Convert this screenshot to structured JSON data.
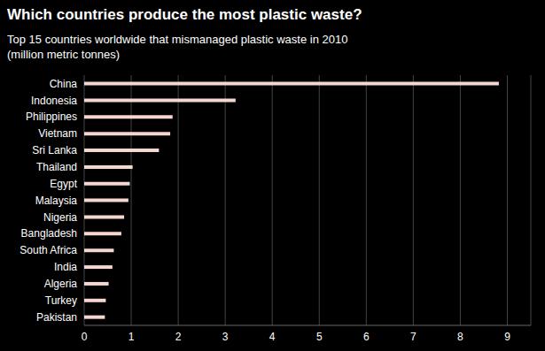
{
  "chart_data": {
    "type": "bar",
    "orientation": "horizontal",
    "title": "Which countries produce the most plastic waste?",
    "subtitle": "Top 15 countries worldwide that mismanaged plastic waste in 2010\n(million metric tonnes)",
    "categories": [
      "China",
      "Indonesia",
      "Philippines",
      "Vietnam",
      "Sri Lanka",
      "Thailand",
      "Egypt",
      "Malaysia",
      "Nigeria",
      "Bangladesh",
      "South Africa",
      "India",
      "Algeria",
      "Turkey",
      "Pakistan"
    ],
    "values": [
      8.82,
      3.22,
      1.88,
      1.83,
      1.59,
      1.03,
      0.97,
      0.94,
      0.85,
      0.79,
      0.63,
      0.6,
      0.52,
      0.46,
      0.44
    ],
    "color": "#f5d6d0",
    "xlim": [
      0,
      9.5
    ],
    "xticks": [
      0,
      1,
      2,
      3,
      4,
      5,
      6,
      7,
      8,
      9
    ],
    "grid": true
  }
}
